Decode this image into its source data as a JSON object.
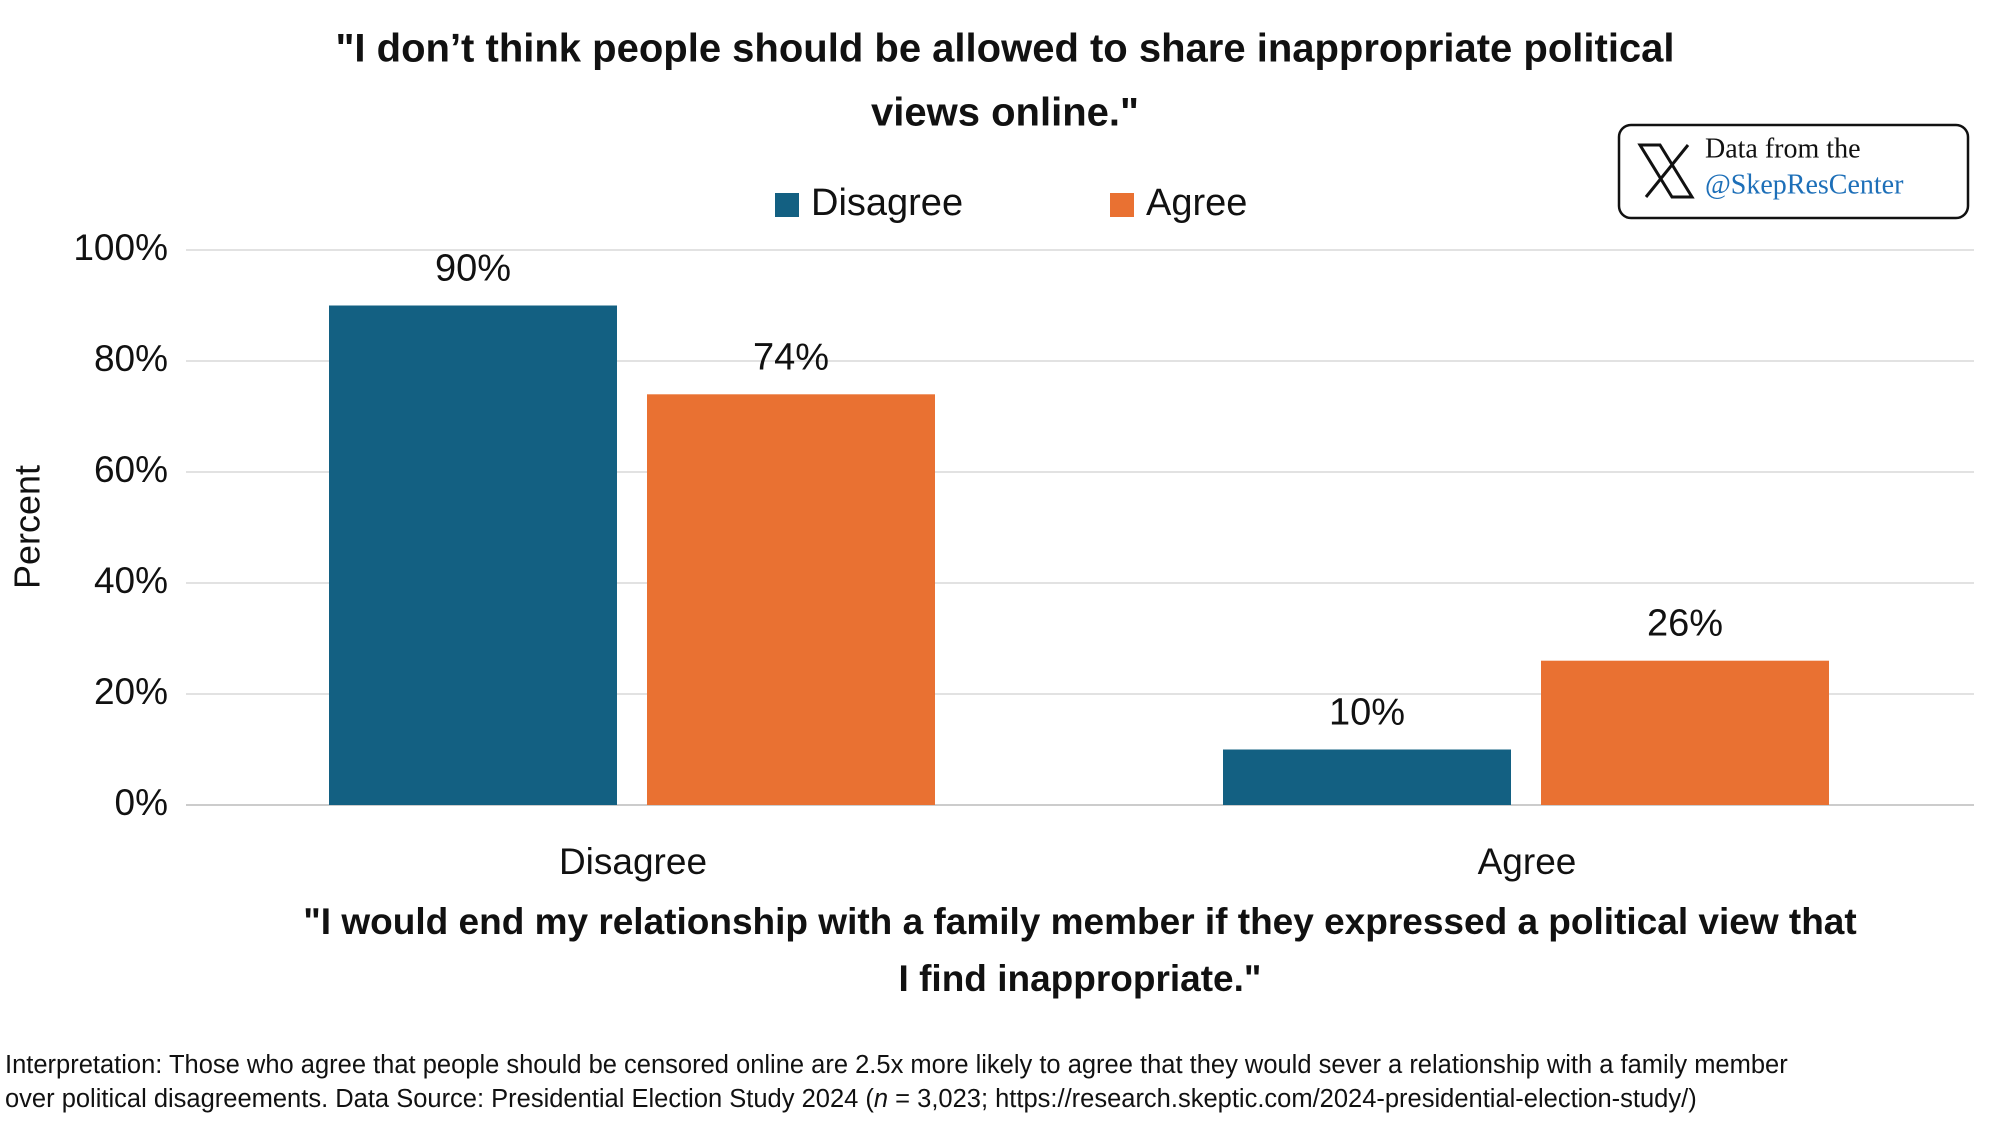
{
  "chart_data": {
    "type": "bar",
    "title": [
      "\"I don’t think people should be allowed to share inappropriate political",
      "views online.\""
    ],
    "categories": [
      "Disagree",
      "Agree"
    ],
    "series": [
      {
        "name": "Disagree",
        "color": "#136082",
        "values": [
          90,
          10
        ],
        "value_labels": [
          "90%",
          "10%"
        ]
      },
      {
        "name": "Agree",
        "color": "#e97132",
        "values": [
          74,
          26
        ],
        "value_labels": [
          "74%",
          "26%"
        ]
      }
    ],
    "ylabel": "Percent",
    "xlabel": [
      "\"I would end my relationship with a family member if they expressed a political view that",
      "I find inappropriate.\""
    ],
    "ylim": [
      0,
      100
    ],
    "yticks": [
      {
        "value": 0,
        "label": "0%"
      },
      {
        "value": 20,
        "label": "20%"
      },
      {
        "value": 40,
        "label": "40%"
      },
      {
        "value": 60,
        "label": "60%"
      },
      {
        "value": 80,
        "label": "80%"
      },
      {
        "value": 100,
        "label": "100%"
      }
    ],
    "grid": true,
    "legend": "top",
    "badge": [
      "Data from the",
      "@SkepResCenter"
    ],
    "footnote": [
      [
        "Interpretation: Those who agree that people should be censored online are 2.5x more likely to agree that they would sever a relationship with a family member"
      ],
      [
        "over political disagreements. Data Source: Presidential Election Study 2024 (",
        "n",
        " = 3,023; https://research.skeptic.com/2024-presidential-election-study/)"
      ]
    ]
  }
}
